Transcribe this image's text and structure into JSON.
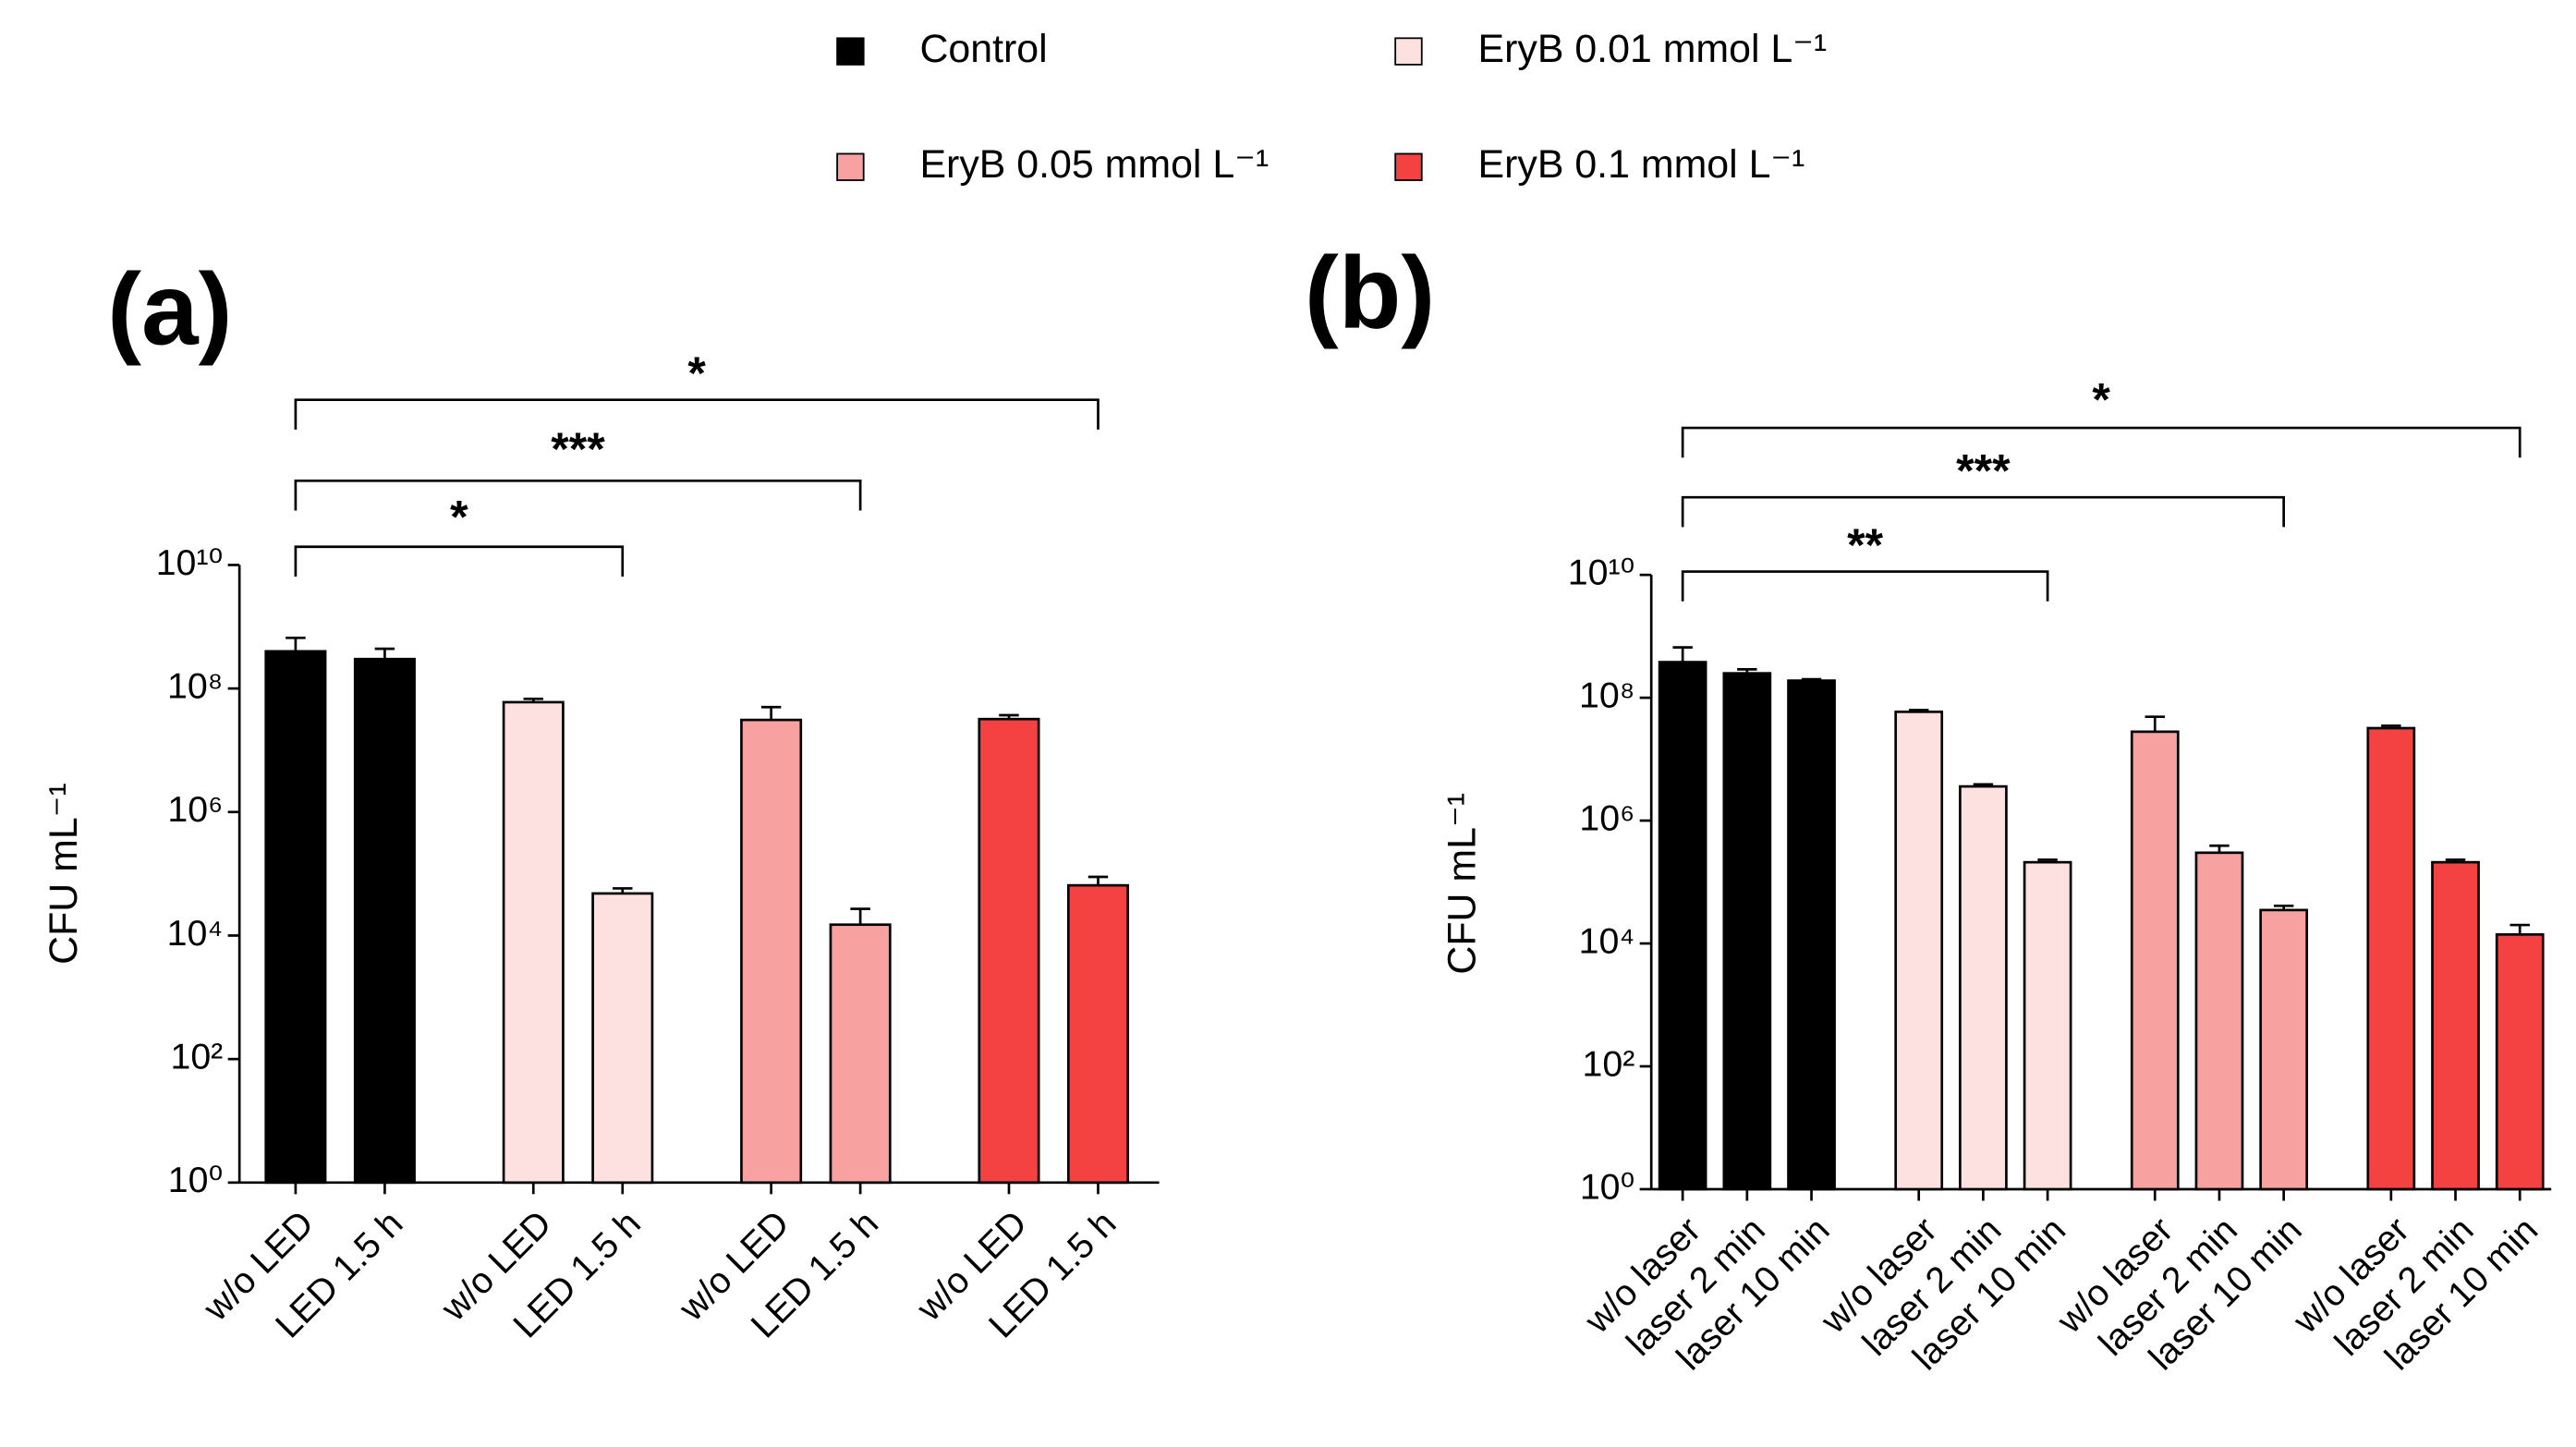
{
  "chart_data": [
    {
      "type": "bar",
      "panel_label": "(a)",
      "y_label": "CFU mL⁻¹",
      "log_scale": true,
      "categories": [
        "w/o LED",
        "LED 1.5 h"
      ],
      "series": [
        {
          "name": "Control",
          "color": "#000000",
          "values": [
            400000000,
            300000000
          ],
          "errors": [
            260000000,
            140000000
          ]
        },
        {
          "name": "EryB 0.01 mmol L⁻¹",
          "color": "#fde0e0",
          "values": [
            60000000,
            48000
          ],
          "errors": [
            8000000,
            10000
          ]
        },
        {
          "name": "EryB 0.05 mmol L⁻¹",
          "color": "#f7a1a1",
          "values": [
            31000000,
            15000
          ],
          "errors": [
            19000000,
            12000
          ]
        },
        {
          "name": "EryB 0.1 mmol L⁻¹",
          "color": "#f44141",
          "values": [
            32000000,
            65000
          ],
          "errors": [
            5000000,
            24000
          ]
        }
      ],
      "ylim": [
        1,
        10000000000
      ],
      "yticks": [
        {
          "value": 1,
          "label": "10⁰"
        },
        {
          "value": 100,
          "label": "10²"
        },
        {
          "value": 10000,
          "label": "10⁴"
        },
        {
          "value": 1000000,
          "label": "10⁶"
        },
        {
          "value": 100000000,
          "label": "10⁸"
        },
        {
          "value": 10000000000,
          "label": "10¹⁰"
        }
      ],
      "significance": [
        {
          "label": "*",
          "from": 0,
          "to": 7
        },
        {
          "label": "***",
          "from": 0,
          "to": 5
        },
        {
          "label": "*",
          "from": 0,
          "to": 3
        }
      ]
    },
    {
      "type": "bar",
      "panel_label": "(b)",
      "y_label": "CFU mL⁻¹",
      "log_scale": true,
      "categories": [
        "w/o laser",
        "laser 2 min",
        "laser 10 min"
      ],
      "series": [
        {
          "name": "Control",
          "color": "#000000",
          "values": [
            380000000,
            250000000,
            190000000
          ],
          "errors": [
            280000000,
            40000000,
            10000000
          ]
        },
        {
          "name": "EryB 0.01 mmol L⁻¹",
          "color": "#fde0e0",
          "values": [
            59000000,
            3600000,
            210000
          ],
          "errors": [
            4000000,
            300000,
            20000
          ]
        },
        {
          "name": "EryB 0.05 mmol L⁻¹",
          "color": "#f7a1a1",
          "values": [
            28000000,
            300000,
            35000
          ],
          "errors": [
            21000000,
            90000,
            6000
          ]
        },
        {
          "name": "EryB 0.1 mmol L⁻¹",
          "color": "#f44141",
          "values": [
            32000000,
            210000,
            14000
          ],
          "errors": [
            3000000,
            20000,
            6000
          ]
        }
      ],
      "ylim": [
        1,
        10000000000
      ],
      "yticks": [
        {
          "value": 1,
          "label": "10⁰"
        },
        {
          "value": 100,
          "label": "10²"
        },
        {
          "value": 10000,
          "label": "10⁴"
        },
        {
          "value": 1000000,
          "label": "10⁶"
        },
        {
          "value": 100000000,
          "label": "10⁸"
        },
        {
          "value": 10000000000,
          "label": "10¹⁰"
        }
      ],
      "significance": [
        {
          "label": "*",
          "from": 0,
          "to": 11
        },
        {
          "label": "***",
          "from": 0,
          "to": 8
        },
        {
          "label": "**",
          "from": 0,
          "to": 5
        }
      ]
    }
  ]
}
